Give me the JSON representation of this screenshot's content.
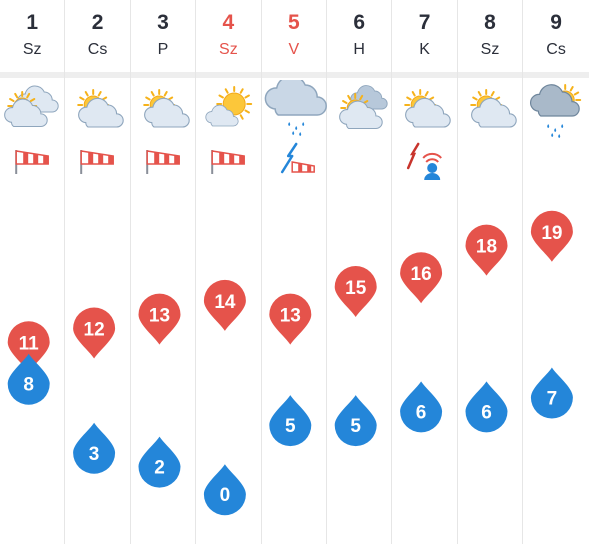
{
  "chart_data": {
    "type": "line",
    "categories": [
      "1",
      "2",
      "3",
      "4",
      "5",
      "6",
      "7",
      "8",
      "9"
    ],
    "days": [
      {
        "num": "1",
        "name": "Sz",
        "weekend": false,
        "weather": "sun-cloud-cloudy",
        "wind": "windsock-icon"
      },
      {
        "num": "2",
        "name": "Cs",
        "weekend": false,
        "weather": "sun-cloud",
        "wind": "windsock-icon"
      },
      {
        "num": "3",
        "name": "P",
        "weekend": false,
        "weather": "sun-cloud",
        "wind": "windsock-icon"
      },
      {
        "num": "4",
        "name": "Sz",
        "weekend": true,
        "weather": "sun-small-cloud",
        "wind": "windsock-icon"
      },
      {
        "num": "5",
        "name": "V",
        "weekend": true,
        "weather": "cloud-rain",
        "wind": "storm-windsock-icon"
      },
      {
        "num": "6",
        "name": "H",
        "weekend": false,
        "weather": "cloud-sun-cloud",
        "wind": "none"
      },
      {
        "num": "7",
        "name": "K",
        "weekend": false,
        "weather": "sun-cloud",
        "wind": "weather-warning-icon"
      },
      {
        "num": "8",
        "name": "Sz",
        "weekend": false,
        "weather": "sun-cloud",
        "wind": "none"
      },
      {
        "num": "9",
        "name": "Cs",
        "weekend": false,
        "weather": "sun-cloud-rain",
        "wind": "none"
      }
    ],
    "series": [
      {
        "name": "",
        "kind": "max",
        "color": "#e5534b",
        "values": [
          11,
          12,
          13,
          14,
          13,
          15,
          16,
          18,
          19
        ]
      },
      {
        "name": "",
        "kind": "min",
        "color": "#2486d9",
        "values": [
          8,
          3,
          2,
          0,
          5,
          5,
          6,
          6,
          7
        ]
      }
    ],
    "ylim": [
      -1,
      20
    ],
    "grid": false,
    "colors": {
      "max": "#e5534b",
      "min": "#2486d9",
      "weekend_text": "#e5534b",
      "text": "#2b2f3a"
    }
  }
}
